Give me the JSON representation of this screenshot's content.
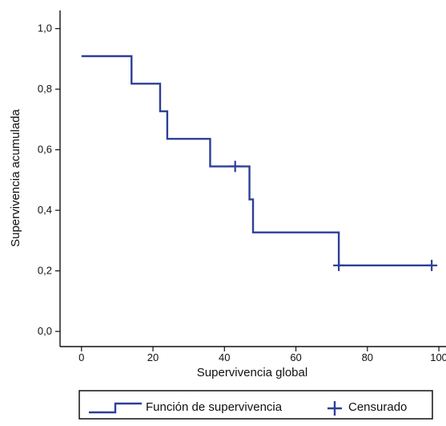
{
  "chart_data": {
    "type": "line",
    "title": "",
    "xlabel": "Supervivencia global",
    "ylabel": "Supervivencia acumulada",
    "xlim": [
      -6,
      102
    ],
    "ylim": [
      -0.05,
      1.06
    ],
    "x_ticks": [
      0,
      20,
      40,
      60,
      80,
      100
    ],
    "y_ticks": [
      0.0,
      0.2,
      0.4,
      0.6,
      0.8,
      1.0
    ],
    "x_tick_labels": [
      "0",
      "20",
      "40",
      "60",
      "80",
      "100"
    ],
    "y_tick_labels": [
      "0,0",
      "0,2",
      "0,4",
      "0,6",
      "0,8",
      "1,0"
    ],
    "grid": false,
    "legend_position": "bottom",
    "colors": {
      "series": "#2E3F98",
      "axis": "#111111"
    },
    "series": [
      {
        "name": "Función de supervivencia",
        "kind": "step",
        "points": [
          [
            0,
            0.909
          ],
          [
            14,
            0.909
          ],
          [
            14,
            0.818
          ],
          [
            22,
            0.818
          ],
          [
            22,
            0.727
          ],
          [
            24,
            0.727
          ],
          [
            24,
            0.636
          ],
          [
            36,
            0.636
          ],
          [
            36,
            0.545
          ],
          [
            47,
            0.545
          ],
          [
            47,
            0.436
          ],
          [
            48,
            0.436
          ],
          [
            48,
            0.327
          ],
          [
            72,
            0.327
          ],
          [
            72,
            0.218
          ],
          [
            98,
            0.218
          ]
        ]
      },
      {
        "name": "Censurado",
        "kind": "censor",
        "points": [
          [
            43,
            0.545
          ],
          [
            72,
            0.218
          ],
          [
            98,
            0.218
          ]
        ]
      }
    ]
  }
}
